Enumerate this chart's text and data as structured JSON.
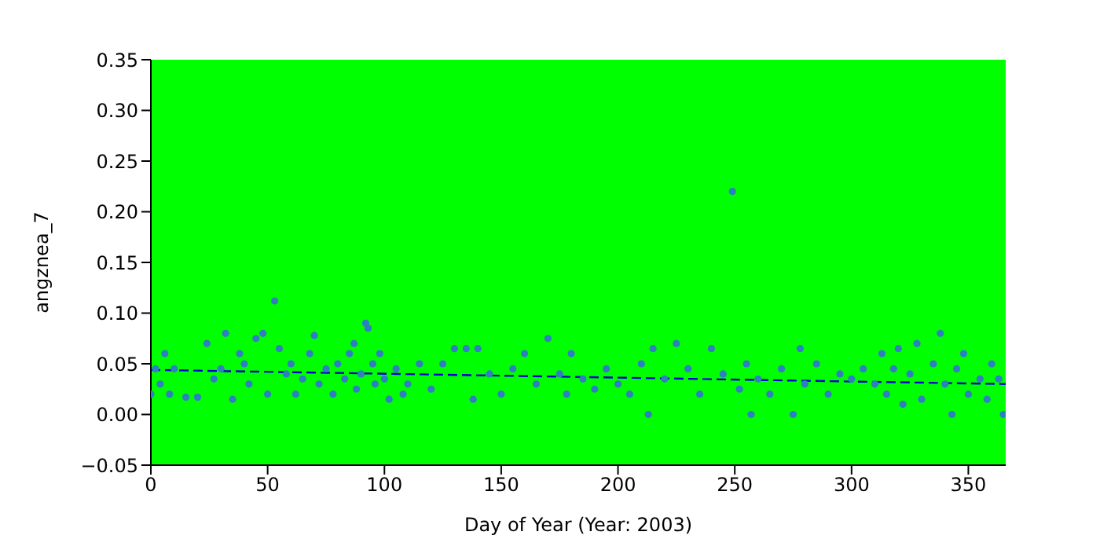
{
  "chart_data": {
    "type": "scatter",
    "xlabel": "Day of Year (Year: 2003)",
    "ylabel": "angznea_7",
    "xlim": [
      0,
      366
    ],
    "xticks": [
      0,
      50,
      100,
      150,
      200,
      250,
      300,
      350
    ],
    "ylim": [
      -0.05,
      0.35
    ],
    "yticks": [
      {
        "value": -0.05,
        "label": "−0.05"
      },
      {
        "value": 0,
        "label": "0.00"
      },
      {
        "value": 0.05,
        "label": "0.05"
      },
      {
        "value": 0.1,
        "label": "0.10"
      },
      {
        "value": 0.15,
        "label": "0.15"
      },
      {
        "value": 0.2,
        "label": "0.20"
      },
      {
        "value": 0.25,
        "label": "0.25"
      },
      {
        "value": 0.3,
        "label": "0.30"
      },
      {
        "value": 0.35,
        "label": "0.35"
      }
    ],
    "grid": false,
    "legend": false,
    "marker": "circle",
    "series": [
      {
        "color": "#2f7fc0",
        "x": [
          0,
          2,
          4,
          6,
          8,
          10,
          15,
          20,
          24,
          27,
          30,
          32,
          35,
          38,
          40,
          42,
          45,
          48,
          50,
          53,
          55,
          58,
          60,
          62,
          65,
          68,
          70,
          72,
          75,
          78,
          80,
          83,
          85,
          87,
          88,
          90,
          92,
          93,
          95,
          96,
          98,
          100,
          102,
          105,
          108,
          110,
          115,
          120,
          125,
          130,
          135,
          138,
          140,
          145,
          150,
          155,
          160,
          165,
          170,
          175,
          178,
          180,
          185,
          190,
          195,
          200,
          205,
          210,
          213,
          215,
          220,
          225,
          230,
          235,
          240,
          245,
          249,
          252,
          255,
          257,
          260,
          265,
          270,
          275,
          278,
          280,
          285,
          290,
          295,
          300,
          305,
          310,
          313,
          315,
          318,
          320,
          322,
          325,
          328,
          330,
          335,
          338,
          340,
          343,
          345,
          348,
          350,
          355,
          358,
          360,
          363,
          365
        ],
        "values": [
          0.02,
          0.045,
          0.03,
          0.06,
          0.02,
          0.045,
          0.017,
          0.017,
          0.07,
          0.035,
          0.045,
          0.08,
          0.015,
          0.06,
          0.05,
          0.03,
          0.075,
          0.08,
          0.02,
          0.112,
          0.065,
          0.04,
          0.05,
          0.02,
          0.035,
          0.06,
          0.078,
          0.03,
          0.045,
          0.02,
          0.05,
          0.035,
          0.06,
          0.07,
          0.025,
          0.04,
          0.09,
          0.085,
          0.05,
          0.03,
          0.06,
          0.035,
          0.015,
          0.045,
          0.02,
          0.03,
          0.05,
          0.025,
          0.05,
          0.065,
          0.065,
          0.015,
          0.065,
          0.04,
          0.02,
          0.045,
          0.06,
          0.03,
          0.075,
          0.04,
          0.02,
          0.06,
          0.035,
          0.025,
          0.045,
          0.03,
          0.02,
          0.05,
          0.0,
          0.065,
          0.035,
          0.07,
          0.045,
          0.02,
          0.065,
          0.04,
          0.22,
          0.025,
          0.05,
          0.0,
          0.035,
          0.02,
          0.045,
          0.0,
          0.065,
          0.03,
          0.05,
          0.02,
          0.04,
          0.035,
          0.045,
          0.03,
          0.06,
          0.02,
          0.045,
          0.065,
          0.01,
          0.04,
          0.07,
          0.015,
          0.05,
          0.08,
          0.03,
          0.0,
          0.045,
          0.06,
          0.02,
          0.035,
          0.015,
          0.05,
          0.035,
          0.0
        ]
      },
      {
        "type": "line",
        "color": "#0000cc",
        "line_style": "dashed",
        "marker": "none",
        "x": [
          0,
          366
        ],
        "values": [
          0.044,
          0.03
        ]
      }
    ]
  }
}
